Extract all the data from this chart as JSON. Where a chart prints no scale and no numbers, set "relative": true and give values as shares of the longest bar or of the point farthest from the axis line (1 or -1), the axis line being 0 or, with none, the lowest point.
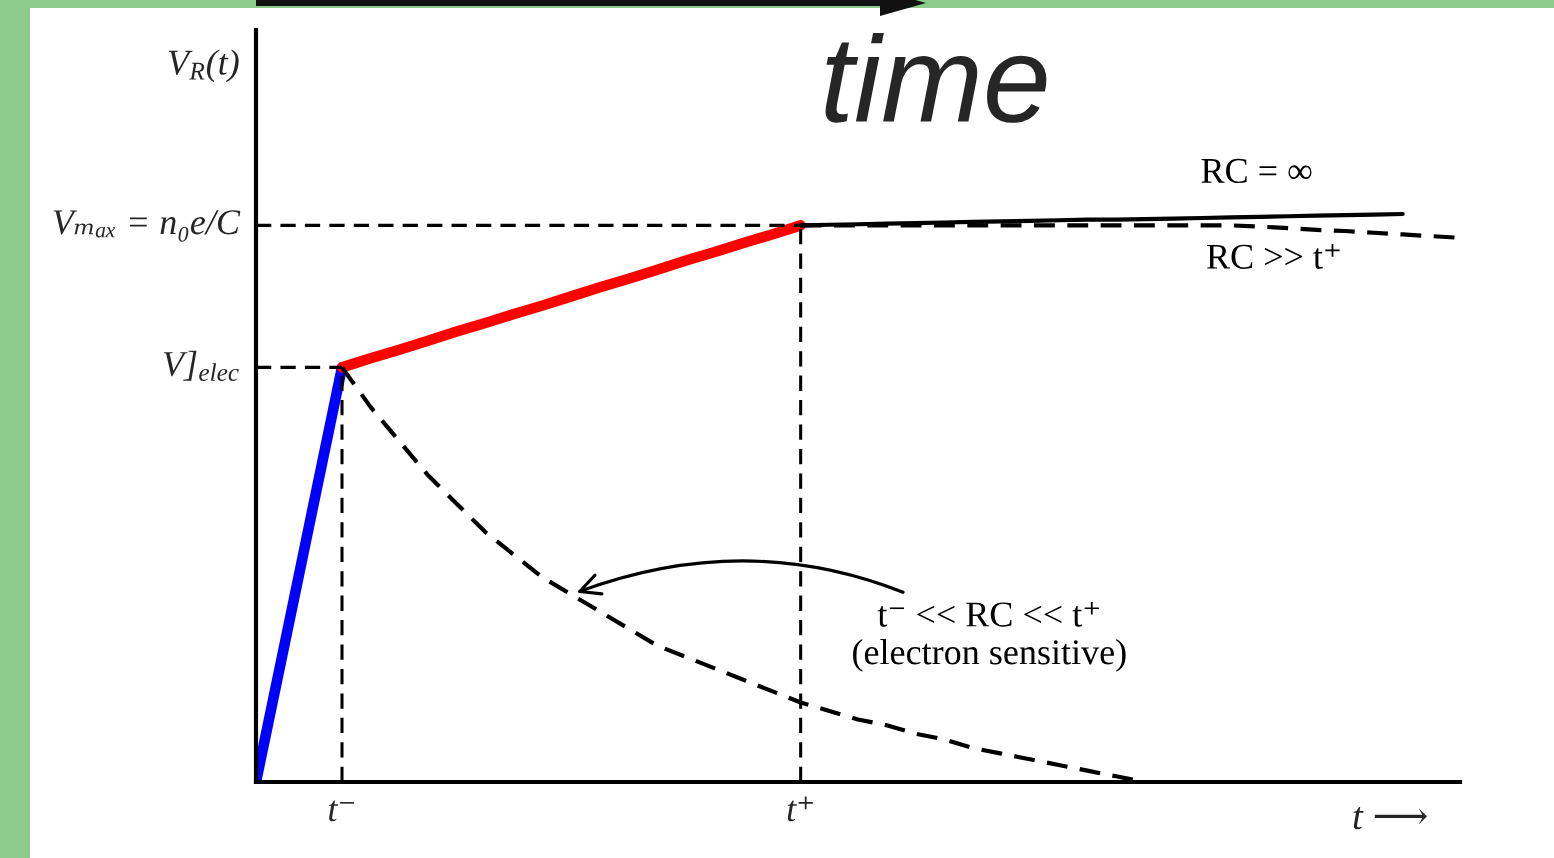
{
  "chart_data": {
    "type": "line",
    "relative": true,
    "ylabel": "V$_{R}$(t)",
    "xlabel": "t ⟶",
    "categories": [
      null,
      null,
      null,
      "t⁻",
      null,
      null,
      null,
      null,
      null,
      null,
      null,
      null,
      null,
      null,
      null,
      null,
      null,
      null,
      null,
      "t⁺",
      null,
      null,
      null,
      null,
      null,
      null,
      null,
      null,
      null,
      null,
      null,
      null,
      null,
      null,
      null,
      null,
      null,
      null,
      null,
      null,
      null,
      null,
      null
    ],
    "series": [
      {
        "color": "#0000ff",
        "values": [
          0,
          0.243,
          0.487,
          0.73,
          null,
          null,
          null,
          null,
          null,
          null,
          null,
          null,
          null,
          null,
          null,
          null,
          null,
          null,
          null,
          null,
          null,
          null,
          null,
          null,
          null,
          null,
          null,
          null,
          null,
          null,
          null,
          null,
          null,
          null,
          null,
          null,
          null,
          null,
          null,
          null,
          null,
          null,
          null
        ]
      },
      {
        "color": "#ff0000",
        "values": [
          null,
          null,
          null,
          0.73,
          0.746,
          0.761,
          0.777,
          0.793,
          0.808,
          0.824,
          0.839,
          0.855,
          0.871,
          0.886,
          0.902,
          0.918,
          0.933,
          0.949,
          0.964,
          0.98,
          null,
          null,
          null,
          null,
          null,
          null,
          null,
          null,
          null,
          null,
          null,
          null,
          null,
          null,
          null,
          null,
          null,
          null,
          null,
          null,
          null,
          null,
          null
        ]
      },
      {
        "name": "RC = ∞",
        "color": "#000000",
        "values": [
          null,
          null,
          null,
          null,
          null,
          null,
          null,
          null,
          null,
          null,
          null,
          null,
          null,
          null,
          null,
          null,
          null,
          null,
          null,
          0.98,
          0.981,
          0.982,
          0.983,
          0.984,
          0.985,
          0.986,
          0.987,
          0.988,
          0.989,
          0.99,
          0.99,
          0.991,
          0.992,
          0.993,
          0.994,
          0.995,
          0.996,
          0.997,
          0.998,
          0.999,
          1,
          null,
          null
        ]
      },
      {
        "name": "RC >> t⁺",
        "color": "#000000",
        "line_style": "dashed",
        "values": [
          null,
          null,
          null,
          null,
          null,
          null,
          null,
          null,
          null,
          null,
          null,
          null,
          null,
          null,
          null,
          null,
          null,
          null,
          null,
          0.98,
          0.98,
          0.98,
          0.98,
          0.98,
          0.98,
          0.98,
          0.98,
          0.98,
          0.98,
          0.98,
          0.98,
          0.98,
          0.98,
          0.98,
          0.98,
          0.978,
          0.975,
          0.972,
          0.97,
          0.967,
          0.964,
          0.961,
          0.958
        ]
      },
      {
        "name": "t⁻ << RC << t⁺\n(electron sensitive)",
        "color": "#000000",
        "line_style": "dashed",
        "values": [
          null,
          null,
          null,
          0.73,
          0.66,
          0.6,
          0.54,
          0.49,
          0.44,
          0.4,
          0.36,
          0.33,
          0.3,
          0.27,
          0.24,
          0.22,
          0.2,
          0.18,
          0.16,
          0.14,
          0.125,
          0.11,
          0.1,
          0.085,
          0.075,
          0.06,
          0.05,
          0.04,
          0.03,
          0.02,
          0.01,
          0,
          null,
          null,
          null,
          null,
          null,
          null,
          null,
          null,
          null,
          null,
          null
        ]
      }
    ],
    "ref_lines": [
      {
        "axis": "y",
        "value": 0.98,
        "label": "Vₘₐₓ = n₀e/C",
        "line_style": "dashed",
        "color": "#000000"
      },
      {
        "axis": "y",
        "value": 0.73,
        "label": "V]$_{elec}$",
        "line_style": "dashed",
        "color": "#000000"
      },
      {
        "axis": "x",
        "value": "t⁻",
        "line_style": "dashed",
        "color": "#000000"
      },
      {
        "axis": "x",
        "value": "t⁺",
        "line_style": "dashed",
        "color": "#000000"
      }
    ],
    "annotations": [
      "time"
    ]
  }
}
